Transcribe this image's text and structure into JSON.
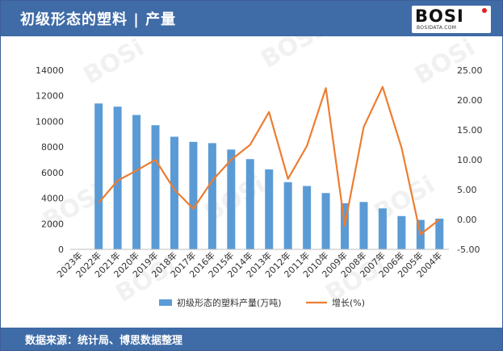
{
  "header": {
    "title": "初级形态的塑料 | 产量",
    "logo_text": "BOSI",
    "logo_sub": "BOSIDATA.COM"
  },
  "footer": {
    "source": "数据来源：统计局、博思数据整理"
  },
  "watermark": "BOSi",
  "colors": {
    "header_bg": "#3f6ba6",
    "bar": "#5b9bd5",
    "line": "#ed7d31"
  },
  "chart_data": {
    "type": "bar",
    "categories": [
      "2023年",
      "2022年",
      "2021年",
      "2020年",
      "2019年",
      "2018年",
      "2017年",
      "2016年",
      "2015年",
      "2014年",
      "2013年",
      "2012年",
      "2011年",
      "2010年",
      "2009年",
      "2008年",
      "2007年",
      "2006年",
      "2005年",
      "2004年"
    ],
    "series": [
      {
        "name": "初级形态的塑料产量(万吨)",
        "type": "bar",
        "axis": "left",
        "values": [
          null,
          11400,
          11150,
          10500,
          9700,
          8800,
          8400,
          8300,
          7800,
          7050,
          6250,
          5250,
          4950,
          4400,
          3600,
          3700,
          3200,
          2600,
          2300,
          2400
        ]
      },
      {
        "name": "增长(%)",
        "type": "line",
        "axis": "right",
        "values": [
          null,
          2.8,
          6.5,
          8.2,
          10.0,
          5.0,
          1.8,
          6.5,
          10.0,
          12.5,
          18.0,
          6.8,
          12.3,
          22.0,
          -1.0,
          15.5,
          22.2,
          12.0,
          -2.5,
          0.0
        ]
      }
    ],
    "y_left": {
      "min": 0,
      "max": 14000,
      "step": 2000,
      "ticks": [
        "0",
        "2000",
        "4000",
        "6000",
        "8000",
        "10000",
        "12000",
        "14000"
      ]
    },
    "y_right": {
      "min": -5,
      "max": 25,
      "step": 5,
      "ticks": [
        "-5.00",
        "0.00",
        "5.00",
        "10.00",
        "15.00",
        "20.00",
        "25.00"
      ]
    },
    "grid": false,
    "legend_position": "bottom"
  }
}
